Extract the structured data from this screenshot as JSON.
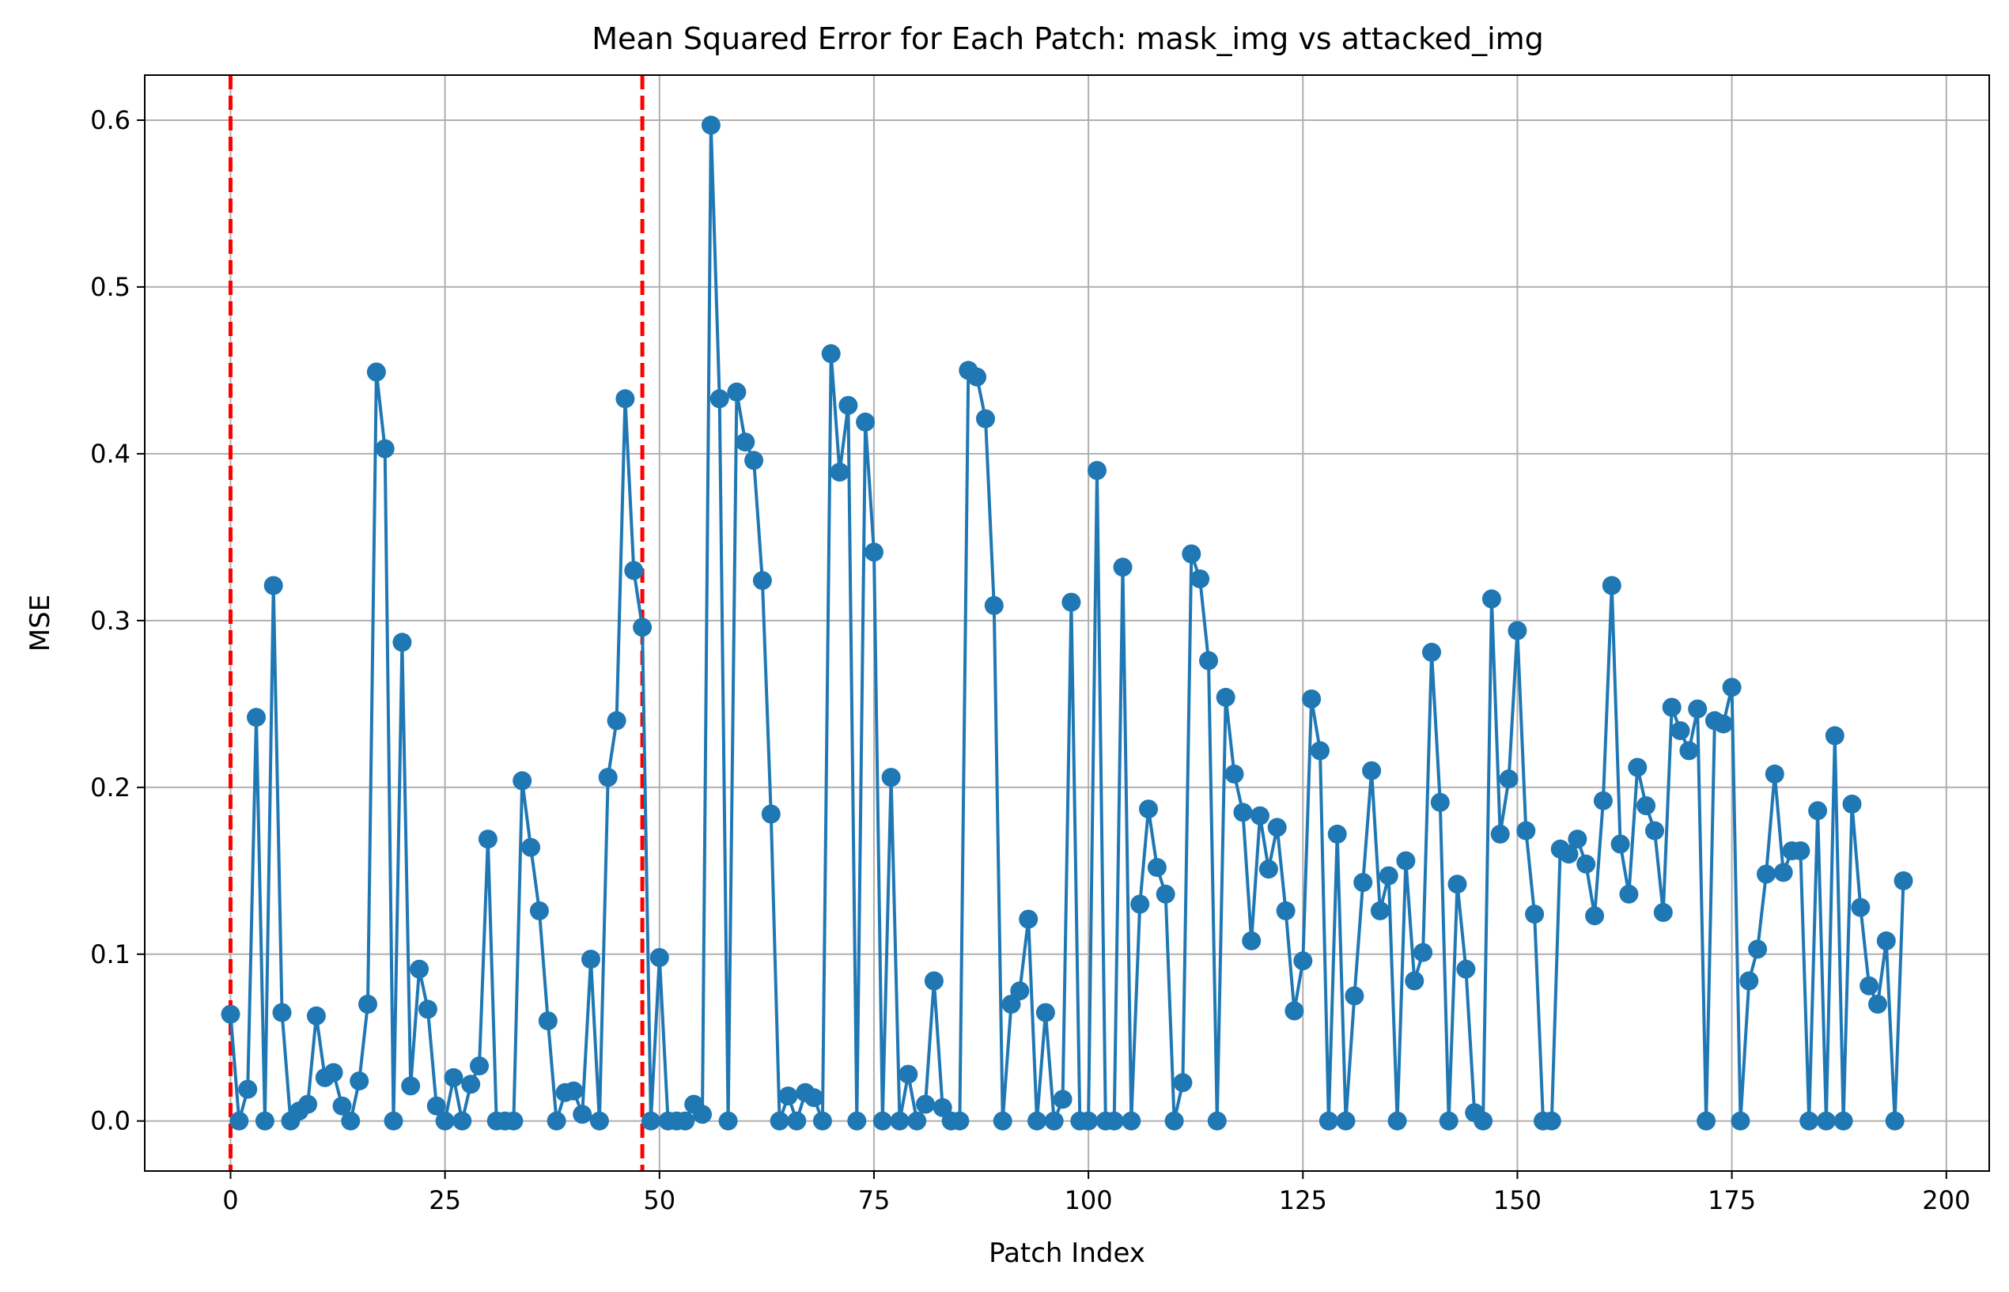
{
  "chart_data": {
    "type": "line",
    "title": "Mean Squared Error for Each Patch: mask_img vs attacked_img",
    "xlabel": "Patch Index",
    "ylabel": "MSE",
    "xlim": [
      -10,
      205
    ],
    "ylim": [
      -0.03,
      0.627
    ],
    "grid": true,
    "legend": "none",
    "x_ticks": [
      0,
      25,
      50,
      75,
      100,
      125,
      150,
      175,
      200
    ],
    "x_tick_labels": [
      "0",
      "25",
      "50",
      "75",
      "100",
      "125",
      "150",
      "175",
      "200"
    ],
    "y_ticks": [
      0.0,
      0.1,
      0.2,
      0.3,
      0.4,
      0.5,
      0.6
    ],
    "y_tick_labels": [
      "0.0",
      "0.1",
      "0.2",
      "0.3",
      "0.4",
      "0.5",
      "0.6"
    ],
    "series": [
      {
        "color": "#1f77b4",
        "marker": "circle",
        "x_start": 0,
        "values": [
          0.064,
          0.0,
          0.019,
          0.242,
          0.0,
          0.321,
          0.065,
          0.0,
          0.006,
          0.01,
          0.063,
          0.026,
          0.029,
          0.009,
          0.0,
          0.024,
          0.07,
          0.449,
          0.403,
          0.0,
          0.287,
          0.021,
          0.091,
          0.067,
          0.009,
          0.0,
          0.026,
          0.0,
          0.022,
          0.033,
          0.169,
          0.0,
          0.0,
          0.0,
          0.204,
          0.164,
          0.126,
          0.06,
          0.0,
          0.017,
          0.018,
          0.004,
          0.097,
          0.0,
          0.206,
          0.24,
          0.433,
          0.33,
          0.296,
          0.0,
          0.098,
          0.0,
          0.0,
          0.0,
          0.01,
          0.004,
          0.597,
          0.433,
          0.0,
          0.437,
          0.407,
          0.396,
          0.324,
          0.184,
          0.0,
          0.015,
          0.0,
          0.017,
          0.014,
          0.0,
          0.46,
          0.389,
          0.429,
          0.0,
          0.419,
          0.341,
          0.0,
          0.206,
          0.0,
          0.028,
          0.0,
          0.01,
          0.084,
          0.008,
          0.0,
          0.0,
          0.45,
          0.446,
          0.421,
          0.309,
          0.0,
          0.07,
          0.078,
          0.121,
          0.0,
          0.065,
          0.0,
          0.013,
          0.311,
          0.0,
          0.0,
          0.39,
          0.0,
          0.0,
          0.332,
          0.0,
          0.13,
          0.187,
          0.152,
          0.136,
          0.0,
          0.023,
          0.34,
          0.325,
          0.276,
          0.0,
          0.254,
          0.208,
          0.185,
          0.108,
          0.183,
          0.151,
          0.176,
          0.126,
          0.066,
          0.096,
          0.253,
          0.222,
          0.0,
          0.172,
          0.0,
          0.075,
          0.143,
          0.21,
          0.126,
          0.147,
          0.0,
          0.156,
          0.084,
          0.101,
          0.281,
          0.191,
          0.0,
          0.142,
          0.091,
          0.005,
          0.0,
          0.313,
          0.172,
          0.205,
          0.294,
          0.174,
          0.124,
          0.0,
          0.0,
          0.163,
          0.16,
          0.169,
          0.154,
          0.123,
          0.192,
          0.321,
          0.166,
          0.136,
          0.212,
          0.189,
          0.174,
          0.125,
          0.248,
          0.234,
          0.222,
          0.247,
          0.0,
          0.24,
          0.238,
          0.26,
          0.0,
          0.084,
          0.103,
          0.148,
          0.208,
          0.149,
          0.162,
          0.162,
          0.0,
          0.186,
          0.0,
          0.231,
          0.0,
          0.19,
          0.128,
          0.081,
          0.07,
          0.108,
          0.0,
          0.144
        ]
      }
    ],
    "vertical_lines": [
      {
        "x": 0,
        "color": "#ff0000",
        "style": "dashed"
      },
      {
        "x": 48,
        "color": "#ff0000",
        "style": "dashed"
      }
    ]
  }
}
